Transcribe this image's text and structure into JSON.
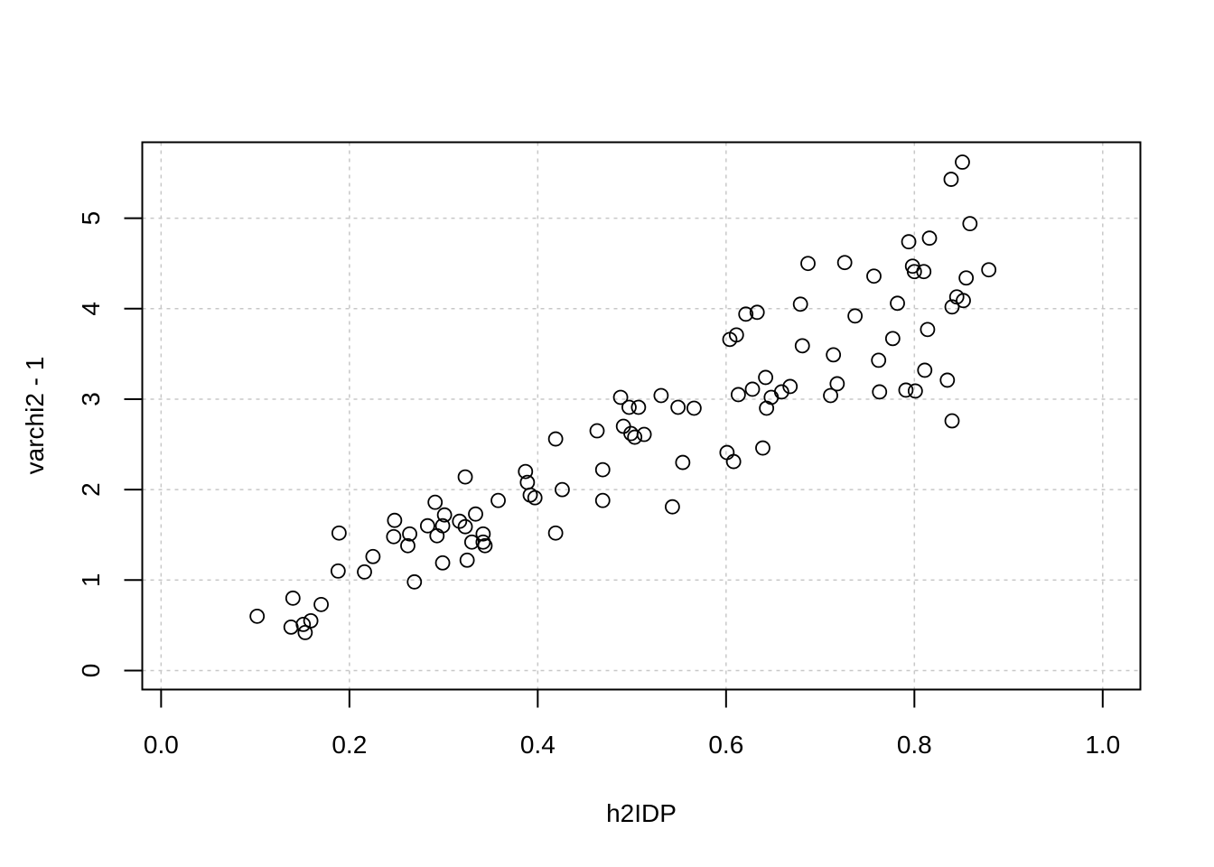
{
  "chart_data": {
    "type": "scatter",
    "title": "",
    "xlabel": "h2IDP",
    "ylabel": "varchi2 - 1",
    "xlim": [
      -0.02,
      1.04
    ],
    "ylim": [
      -0.21,
      5.84
    ],
    "x_ticks": [
      0.0,
      0.2,
      0.4,
      0.6,
      0.8,
      1.0
    ],
    "x_tick_labels": [
      "0.0",
      "0.2",
      "0.4",
      "0.6",
      "0.8",
      "1.0"
    ],
    "y_ticks": [
      0,
      1,
      2,
      3,
      4,
      5
    ],
    "y_tick_labels": [
      "0",
      "1",
      "2",
      "3",
      "4",
      "5"
    ],
    "grid": true,
    "grid_style": "dotted",
    "marker": "open-circle",
    "colors": {
      "points": "#000000",
      "grid": "#c8c8c8",
      "axes": "#000000"
    },
    "points": [
      [
        0.102,
        0.6
      ],
      [
        0.138,
        0.48
      ],
      [
        0.14,
        0.8
      ],
      [
        0.151,
        0.51
      ],
      [
        0.153,
        0.42
      ],
      [
        0.159,
        0.55
      ],
      [
        0.17,
        0.73
      ],
      [
        0.188,
        1.1
      ],
      [
        0.189,
        1.52
      ],
      [
        0.216,
        1.09
      ],
      [
        0.225,
        1.26
      ],
      [
        0.247,
        1.48
      ],
      [
        0.248,
        1.66
      ],
      [
        0.262,
        1.38
      ],
      [
        0.264,
        1.51
      ],
      [
        0.269,
        0.98
      ],
      [
        0.283,
        1.6
      ],
      [
        0.291,
        1.86
      ],
      [
        0.293,
        1.49
      ],
      [
        0.299,
        1.6
      ],
      [
        0.299,
        1.19
      ],
      [
        0.301,
        1.72
      ],
      [
        0.317,
        1.65
      ],
      [
        0.323,
        1.59
      ],
      [
        0.323,
        2.14
      ],
      [
        0.325,
        1.22
      ],
      [
        0.33,
        1.42
      ],
      [
        0.334,
        1.73
      ],
      [
        0.342,
        1.51
      ],
      [
        0.342,
        1.42
      ],
      [
        0.344,
        1.38
      ],
      [
        0.358,
        1.88
      ],
      [
        0.387,
        2.2
      ],
      [
        0.389,
        2.08
      ],
      [
        0.392,
        1.94
      ],
      [
        0.397,
        1.91
      ],
      [
        0.419,
        2.56
      ],
      [
        0.419,
        1.52
      ],
      [
        0.426,
        2.0
      ],
      [
        0.463,
        2.65
      ],
      [
        0.469,
        2.22
      ],
      [
        0.469,
        1.88
      ],
      [
        0.488,
        3.02
      ],
      [
        0.491,
        2.7
      ],
      [
        0.497,
        2.91
      ],
      [
        0.499,
        2.62
      ],
      [
        0.503,
        2.58
      ],
      [
        0.507,
        2.91
      ],
      [
        0.513,
        2.61
      ],
      [
        0.531,
        3.04
      ],
      [
        0.543,
        1.81
      ],
      [
        0.549,
        2.91
      ],
      [
        0.554,
        2.3
      ],
      [
        0.566,
        2.9
      ],
      [
        0.601,
        2.41
      ],
      [
        0.604,
        3.66
      ],
      [
        0.608,
        2.31
      ],
      [
        0.611,
        3.71
      ],
      [
        0.613,
        3.05
      ],
      [
        0.621,
        3.94
      ],
      [
        0.628,
        3.11
      ],
      [
        0.633,
        3.96
      ],
      [
        0.639,
        2.46
      ],
      [
        0.642,
        3.24
      ],
      [
        0.643,
        2.9
      ],
      [
        0.648,
        3.02
      ],
      [
        0.659,
        3.08
      ],
      [
        0.668,
        3.14
      ],
      [
        0.679,
        4.05
      ],
      [
        0.681,
        3.59
      ],
      [
        0.687,
        4.5
      ],
      [
        0.711,
        3.04
      ],
      [
        0.714,
        3.49
      ],
      [
        0.718,
        3.17
      ],
      [
        0.726,
        4.51
      ],
      [
        0.737,
        3.92
      ],
      [
        0.757,
        4.36
      ],
      [
        0.762,
        3.43
      ],
      [
        0.763,
        3.08
      ],
      [
        0.777,
        3.67
      ],
      [
        0.782,
        4.06
      ],
      [
        0.791,
        3.1
      ],
      [
        0.794,
        4.74
      ],
      [
        0.798,
        4.47
      ],
      [
        0.8,
        4.41
      ],
      [
        0.801,
        3.09
      ],
      [
        0.81,
        4.41
      ],
      [
        0.811,
        3.32
      ],
      [
        0.814,
        3.77
      ],
      [
        0.816,
        4.78
      ],
      [
        0.835,
        3.21
      ],
      [
        0.839,
        5.43
      ],
      [
        0.84,
        4.02
      ],
      [
        0.84,
        2.76
      ],
      [
        0.845,
        4.13
      ],
      [
        0.851,
        5.62
      ],
      [
        0.852,
        4.09
      ],
      [
        0.855,
        4.34
      ],
      [
        0.859,
        4.94
      ],
      [
        0.879,
        4.43
      ]
    ]
  }
}
